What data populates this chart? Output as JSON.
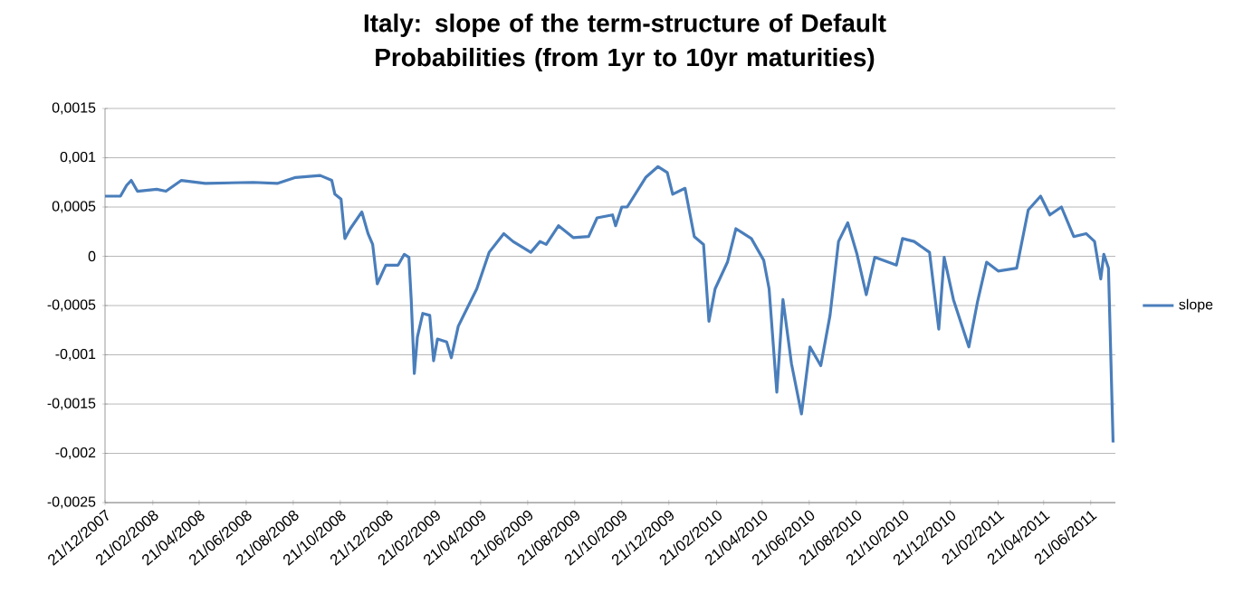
{
  "chart_data": {
    "type": "line",
    "title": "Italy: slope of the term-structure of Default Probabilities (from 1yr to 10yr maturities)",
    "x": [
      "2007-12-21",
      "2008-01-10",
      "2008-01-18",
      "2008-01-24",
      "2008-02-01",
      "2008-02-26",
      "2008-03-09",
      "2008-03-29",
      "2008-04-29",
      "2008-06-30",
      "2008-08-01",
      "2008-08-24",
      "2008-09-25",
      "2008-10-10",
      "2008-10-14",
      "2008-10-22",
      "2008-10-27",
      "2008-11-03",
      "2008-11-18",
      "2008-11-26",
      "2008-12-02",
      "2008-12-08",
      "2008-12-19",
      "2009-01-04",
      "2009-01-12",
      "2009-01-18",
      "2009-01-21",
      "2009-01-25",
      "2009-01-29",
      "2009-02-05",
      "2009-02-14",
      "2009-02-19",
      "2009-02-24",
      "2009-03-08",
      "2009-03-14",
      "2009-03-23",
      "2009-04-16",
      "2009-05-02",
      "2009-05-21",
      "2009-06-02",
      "2009-06-25",
      "2009-07-07",
      "2009-07-15",
      "2009-07-31",
      "2009-08-19",
      "2009-09-08",
      "2009-09-19",
      "2009-10-09",
      "2009-10-13",
      "2009-10-21",
      "2009-10-28",
      "2009-11-21",
      "2009-12-07",
      "2009-12-19",
      "2009-12-26",
      "2010-01-11",
      "2010-01-23",
      "2010-02-04",
      "2010-02-11",
      "2010-02-19",
      "2010-03-07",
      "2010-03-18",
      "2010-04-07",
      "2010-04-23",
      "2010-04-30",
      "2010-05-10",
      "2010-05-18",
      "2010-05-29",
      "2010-06-11",
      "2010-06-22",
      "2010-07-06",
      "2010-07-18",
      "2010-07-29",
      "2010-08-10",
      "2010-08-22",
      "2010-09-03",
      "2010-09-14",
      "2010-10-12",
      "2010-10-20",
      "2010-11-04",
      "2010-11-24",
      "2010-12-06",
      "2010-12-13",
      "2010-12-25",
      "2011-01-14",
      "2011-01-25",
      "2011-02-06",
      "2011-02-21",
      "2011-03-17",
      "2011-04-01",
      "2011-04-17",
      "2011-04-29",
      "2011-05-14",
      "2011-05-30",
      "2011-06-15",
      "2011-06-26",
      "2011-07-04",
      "2011-07-08",
      "2011-07-14",
      "2011-07-20"
    ],
    "series": [
      {
        "name": "slope",
        "color": "#4a7ebb",
        "values": [
          0.00061,
          0.00061,
          0.00072,
          0.00077,
          0.00066,
          0.00068,
          0.00066,
          0.00077,
          0.00074,
          0.00075,
          0.00074,
          0.0008,
          0.00082,
          0.00077,
          0.00063,
          0.00058,
          0.00018,
          0.00028,
          0.00045,
          0.00023,
          0.00012,
          -0.00028,
          -9e-05,
          -9e-05,
          2e-05,
          -1e-05,
          -0.00044,
          -0.00119,
          -0.00082,
          -0.00058,
          -0.0006,
          -0.00106,
          -0.00084,
          -0.00087,
          -0.00103,
          -0.00071,
          -0.00033,
          4e-05,
          0.00023,
          0.00015,
          4e-05,
          0.00015,
          0.00012,
          0.00031,
          0.00019,
          0.0002,
          0.00039,
          0.00042,
          0.00031,
          0.0005,
          0.0005,
          0.0008,
          0.00091,
          0.00085,
          0.00063,
          0.00069,
          0.0002,
          0.00012,
          -0.00066,
          -0.00033,
          -6e-05,
          0.00028,
          0.00018,
          -4e-05,
          -0.00033,
          -0.00138,
          -0.00044,
          -0.00109,
          -0.0016,
          -0.00092,
          -0.00111,
          -0.0006,
          0.00015,
          0.00034,
          2e-05,
          -0.00039,
          -1e-05,
          -9e-05,
          0.00018,
          0.00015,
          4e-05,
          -0.00074,
          -1e-05,
          -0.00044,
          -0.00092,
          -0.00047,
          -6e-05,
          -0.00015,
          -0.00012,
          0.00047,
          0.00061,
          0.00042,
          0.0005,
          0.0002,
          0.00023,
          0.00015,
          -0.00023,
          2e-05,
          -0.00012,
          -0.00189
        ]
      }
    ],
    "xlim": [
      "2007-12-21",
      "2011-07-23"
    ],
    "xticks": [
      {
        "value": "2007-12-21",
        "label": "21/12/2007"
      },
      {
        "value": "2008-02-21",
        "label": "21/02/2008"
      },
      {
        "value": "2008-04-21",
        "label": "21/04/2008"
      },
      {
        "value": "2008-06-21",
        "label": "21/06/2008"
      },
      {
        "value": "2008-08-21",
        "label": "21/08/2008"
      },
      {
        "value": "2008-10-21",
        "label": "21/10/2008"
      },
      {
        "value": "2008-12-21",
        "label": "21/12/2008"
      },
      {
        "value": "2009-02-21",
        "label": "21/02/2009"
      },
      {
        "value": "2009-04-21",
        "label": "21/04/2009"
      },
      {
        "value": "2009-06-21",
        "label": "21/06/2009"
      },
      {
        "value": "2009-08-21",
        "label": "21/08/2009"
      },
      {
        "value": "2009-10-21",
        "label": "21/10/2009"
      },
      {
        "value": "2009-12-21",
        "label": "21/12/2009"
      },
      {
        "value": "2010-02-21",
        "label": "21/02/2010"
      },
      {
        "value": "2010-04-21",
        "label": "21/04/2010"
      },
      {
        "value": "2010-06-21",
        "label": "21/06/2010"
      },
      {
        "value": "2010-08-21",
        "label": "21/08/2010"
      },
      {
        "value": "2010-10-21",
        "label": "21/10/2010"
      },
      {
        "value": "2010-12-21",
        "label": "21/12/2010"
      },
      {
        "value": "2011-02-21",
        "label": "21/02/2011"
      },
      {
        "value": "2011-04-21",
        "label": "21/04/2011"
      },
      {
        "value": "2011-06-21",
        "label": "21/06/2011"
      }
    ],
    "ylim": [
      -0.0025,
      0.0015
    ],
    "yticks": [
      {
        "value": -0.0025,
        "label": "-0,0025"
      },
      {
        "value": -0.002,
        "label": "-0,002"
      },
      {
        "value": -0.0015,
        "label": "-0,0015"
      },
      {
        "value": -0.001,
        "label": "-0,001"
      },
      {
        "value": -0.0005,
        "label": "-0,0005"
      },
      {
        "value": 0,
        "label": "0"
      },
      {
        "value": 0.0005,
        "label": "0,0005"
      },
      {
        "value": 0.001,
        "label": "0,001"
      },
      {
        "value": 0.0015,
        "label": "0,0015"
      }
    ],
    "grid": "y",
    "legend": "right",
    "marker": "none",
    "line_style": "solid"
  }
}
